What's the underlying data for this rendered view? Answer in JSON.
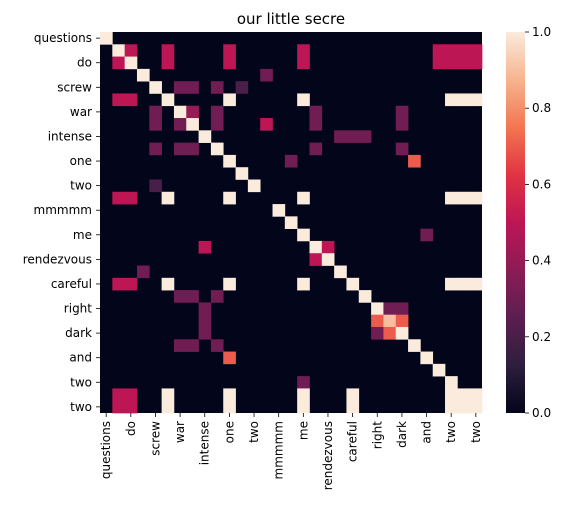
{
  "chart_data": {
    "type": "heatmap",
    "title": "our little secre",
    "xlabel": "",
    "ylabel": "",
    "labels": [
      "questions",
      "",
      "do",
      "",
      "screw",
      "",
      "war",
      "",
      "intense",
      "",
      "one",
      "",
      "two",
      "",
      "mmmmm",
      "",
      "me",
      "",
      "rendezvous",
      "",
      "careful",
      "",
      "right",
      "",
      "dark",
      "",
      "and",
      "",
      "two",
      "",
      "two"
    ],
    "x_tick_labels": [
      "questions",
      "do",
      "screw",
      "war",
      "intense",
      "one",
      "two",
      "mmmmm",
      "me",
      "rendezvous",
      "careful",
      "right",
      "dark",
      "and",
      "two",
      "two"
    ],
    "y_tick_labels": [
      "questions",
      "do",
      "screw",
      "war",
      "intense",
      "one",
      "two",
      "mmmmm",
      "me",
      "rendezvous",
      "careful",
      "right",
      "dark",
      "and",
      "two",
      "two"
    ],
    "colorbar": {
      "min": 0.0,
      "max": 1.0,
      "ticks": [
        "0.0",
        "0.2",
        "0.4",
        "0.6",
        "0.8",
        "1.0"
      ]
    },
    "colormap": [
      "#03051a",
      "#2d1e3e",
      "#5c1e51",
      "#8c1c55",
      "#bd1655",
      "#e13342",
      "#f37651",
      "#f6b48f",
      "#faebdd"
    ],
    "cells": [
      [
        0,
        0,
        1.0
      ],
      [
        1,
        1,
        1.0
      ],
      [
        1,
        2,
        0.5
      ],
      [
        1,
        5,
        0.5
      ],
      [
        1,
        10,
        0.5
      ],
      [
        1,
        16,
        0.5
      ],
      [
        1,
        27,
        0.5
      ],
      [
        1,
        28,
        0.5
      ],
      [
        1,
        29,
        0.5
      ],
      [
        1,
        30,
        0.5
      ],
      [
        2,
        1,
        0.5
      ],
      [
        2,
        2,
        1.0
      ],
      [
        2,
        5,
        0.5
      ],
      [
        2,
        10,
        0.5
      ],
      [
        2,
        16,
        0.5
      ],
      [
        2,
        27,
        0.5
      ],
      [
        2,
        28,
        0.5
      ],
      [
        2,
        29,
        0.5
      ],
      [
        2,
        30,
        0.5
      ],
      [
        3,
        3,
        1.0
      ],
      [
        3,
        13,
        0.3
      ],
      [
        4,
        4,
        1.0
      ],
      [
        4,
        6,
        0.3
      ],
      [
        4,
        7,
        0.3
      ],
      [
        4,
        9,
        0.3
      ],
      [
        4,
        11,
        0.2
      ],
      [
        5,
        1,
        0.5
      ],
      [
        5,
        2,
        0.5
      ],
      [
        5,
        5,
        1.0
      ],
      [
        5,
        10,
        1.0
      ],
      [
        5,
        16,
        1.0
      ],
      [
        5,
        28,
        1.0
      ],
      [
        5,
        29,
        1.0
      ],
      [
        5,
        30,
        1.0
      ],
      [
        6,
        4,
        0.3
      ],
      [
        6,
        6,
        1.0
      ],
      [
        6,
        7,
        0.4
      ],
      [
        6,
        9,
        0.3
      ],
      [
        6,
        17,
        0.3
      ],
      [
        6,
        24,
        0.3
      ],
      [
        7,
        4,
        0.3
      ],
      [
        7,
        6,
        0.3
      ],
      [
        7,
        7,
        1.0
      ],
      [
        7,
        9,
        0.3
      ],
      [
        7,
        13,
        0.5
      ],
      [
        7,
        17,
        0.3
      ],
      [
        7,
        24,
        0.3
      ],
      [
        8,
        8,
        1.0
      ],
      [
        8,
        19,
        0.3
      ],
      [
        8,
        20,
        0.3
      ],
      [
        8,
        21,
        0.3
      ],
      [
        9,
        4,
        0.3
      ],
      [
        9,
        6,
        0.3
      ],
      [
        9,
        7,
        0.3
      ],
      [
        9,
        9,
        1.0
      ],
      [
        9,
        17,
        0.3
      ],
      [
        9,
        24,
        0.3
      ],
      [
        10,
        10,
        1.0
      ],
      [
        10,
        15,
        0.3
      ],
      [
        10,
        25,
        0.7
      ],
      [
        11,
        11,
        1.0
      ],
      [
        12,
        4,
        0.2
      ],
      [
        12,
        12,
        1.0
      ],
      [
        13,
        1,
        0.5
      ],
      [
        13,
        2,
        0.5
      ],
      [
        13,
        5,
        1.0
      ],
      [
        13,
        10,
        1.0
      ],
      [
        13,
        16,
        1.0
      ],
      [
        13,
        28,
        1.0
      ],
      [
        13,
        29,
        1.0
      ],
      [
        13,
        30,
        1.0
      ],
      [
        14,
        14,
        1.0
      ],
      [
        15,
        15,
        1.0
      ],
      [
        16,
        16,
        1.0
      ],
      [
        16,
        26,
        0.3
      ],
      [
        17,
        8,
        0.5
      ],
      [
        17,
        17,
        1.0
      ],
      [
        17,
        18,
        0.5
      ],
      [
        18,
        17,
        0.5
      ],
      [
        18,
        18,
        1.0
      ],
      [
        19,
        3,
        0.3
      ],
      [
        19,
        19,
        1.0
      ],
      [
        20,
        1,
        0.5
      ],
      [
        20,
        2,
        0.5
      ],
      [
        20,
        5,
        1.0
      ],
      [
        20,
        10,
        1.0
      ],
      [
        20,
        16,
        1.0
      ],
      [
        20,
        20,
        1.0
      ],
      [
        20,
        28,
        1.0
      ],
      [
        20,
        29,
        1.0
      ],
      [
        20,
        30,
        1.0
      ],
      [
        21,
        6,
        0.3
      ],
      [
        21,
        7,
        0.3
      ],
      [
        21,
        9,
        0.3
      ],
      [
        21,
        21,
        1.0
      ],
      [
        22,
        8,
        0.3
      ],
      [
        22,
        22,
        1.0
      ],
      [
        22,
        23,
        0.3
      ],
      [
        22,
        24,
        0.3
      ],
      [
        23,
        8,
        0.3
      ],
      [
        23,
        22,
        0.7
      ],
      [
        23,
        23,
        0.9
      ],
      [
        23,
        24,
        0.7
      ],
      [
        24,
        8,
        0.3
      ],
      [
        24,
        22,
        0.3
      ],
      [
        24,
        23,
        0.7
      ],
      [
        24,
        24,
        1.0
      ],
      [
        25,
        6,
        0.3
      ],
      [
        25,
        7,
        0.3
      ],
      [
        25,
        9,
        0.3
      ],
      [
        25,
        25,
        1.0
      ],
      [
        26,
        10,
        0.7
      ],
      [
        26,
        26,
        1.0
      ],
      [
        27,
        27,
        1.0
      ],
      [
        28,
        16,
        0.3
      ],
      [
        28,
        28,
        1.0
      ],
      [
        29,
        1,
        0.5
      ],
      [
        29,
        2,
        0.5
      ],
      [
        29,
        5,
        1.0
      ],
      [
        29,
        10,
        1.0
      ],
      [
        29,
        16,
        1.0
      ],
      [
        29,
        20,
        1.0
      ],
      [
        29,
        28,
        1.0
      ],
      [
        29,
        29,
        1.0
      ],
      [
        29,
        30,
        1.0
      ],
      [
        30,
        1,
        0.5
      ],
      [
        30,
        2,
        0.5
      ],
      [
        30,
        5,
        1.0
      ],
      [
        30,
        10,
        1.0
      ],
      [
        30,
        16,
        1.0
      ],
      [
        30,
        20,
        1.0
      ],
      [
        30,
        28,
        1.0
      ],
      [
        30,
        29,
        1.0
      ],
      [
        30,
        30,
        1.0
      ]
    ]
  }
}
